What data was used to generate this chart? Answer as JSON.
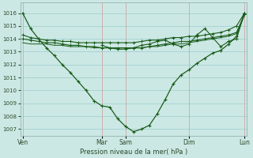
{
  "background_color": "#cce8e4",
  "grid_color": "#99cccc",
  "line_color": "#1a5c1a",
  "xlabel": "Pression niveau de la mer( hPa )",
  "ylim": [
    1006.5,
    1016.8
  ],
  "yticks": [
    1007,
    1008,
    1009,
    1010,
    1011,
    1012,
    1013,
    1014,
    1015,
    1016
  ],
  "xtick_labels": [
    "Ven",
    "Mar",
    "Sam",
    "Dim",
    "Lun"
  ],
  "xtick_positions": [
    0,
    10,
    13,
    21,
    28
  ],
  "vline_positions": [
    0,
    10,
    13,
    21,
    28
  ],
  "total_points": 29,
  "line1_x": [
    0,
    1,
    2,
    3,
    4,
    5,
    6,
    7,
    8,
    9,
    10,
    11,
    12,
    13,
    14,
    15,
    16,
    17,
    18,
    19,
    20,
    21,
    22,
    23,
    24,
    25,
    26,
    27,
    28
  ],
  "line1_y": [
    1016.0,
    1014.8,
    1014.0,
    1013.3,
    1012.7,
    1012.0,
    1011.4,
    1010.7,
    1010.0,
    1009.2,
    1008.8,
    1008.7,
    1007.8,
    1007.2,
    1006.8,
    1007.0,
    1007.3,
    1008.2,
    1009.3,
    1010.5,
    1011.2,
    1011.6,
    1012.1,
    1012.5,
    1012.9,
    1013.1,
    1013.6,
    1014.2,
    1016.0
  ],
  "line2_x": [
    0,
    1,
    2,
    3,
    4,
    5,
    6,
    7,
    8,
    9,
    10,
    11,
    12,
    13,
    14,
    15,
    16,
    17,
    18,
    19,
    20,
    21,
    22,
    23,
    24,
    25,
    26,
    27,
    28
  ],
  "line2_y": [
    1014.3,
    1014.1,
    1014.0,
    1013.9,
    1013.9,
    1013.8,
    1013.8,
    1013.7,
    1013.7,
    1013.7,
    1013.7,
    1013.7,
    1013.7,
    1013.7,
    1013.7,
    1013.8,
    1013.9,
    1013.9,
    1014.0,
    1014.1,
    1014.1,
    1014.2,
    1014.2,
    1014.3,
    1014.4,
    1014.5,
    1014.7,
    1015.0,
    1016.0
  ],
  "line3_x": [
    0,
    1,
    2,
    3,
    4,
    5,
    6,
    7,
    8,
    9,
    10,
    11,
    12,
    13,
    14,
    15,
    16,
    17,
    18,
    19,
    20,
    21,
    22,
    23,
    24,
    25,
    26,
    27,
    28
  ],
  "line3_y": [
    1014.0,
    1013.9,
    1013.8,
    1013.7,
    1013.7,
    1013.6,
    1013.5,
    1013.5,
    1013.4,
    1013.4,
    1013.3,
    1013.3,
    1013.3,
    1013.3,
    1013.3,
    1013.3,
    1013.4,
    1013.5,
    1013.6,
    1013.7,
    1013.8,
    1013.8,
    1013.9,
    1014.0,
    1014.1,
    1014.2,
    1014.3,
    1014.5,
    1015.9
  ],
  "line4_x": [
    0,
    1,
    2,
    3,
    4,
    5,
    6,
    7,
    8,
    9,
    10,
    11,
    12,
    13,
    14,
    15,
    16,
    17,
    18,
    19,
    20,
    21,
    22,
    23,
    24,
    25,
    26,
    27,
    28
  ],
  "line4_y": [
    1013.7,
    1013.6,
    1013.6,
    1013.6,
    1013.5,
    1013.5,
    1013.4,
    1013.4,
    1013.4,
    1013.3,
    1013.3,
    1013.3,
    1013.3,
    1013.3,
    1013.3,
    1013.3,
    1013.4,
    1013.4,
    1013.5,
    1013.6,
    1013.6,
    1013.7,
    1013.8,
    1013.9,
    1014.0,
    1014.1,
    1014.2,
    1014.4,
    1015.8
  ],
  "line5_x": [
    10,
    11,
    12,
    13,
    14,
    15,
    16,
    17,
    18,
    19,
    20,
    21,
    22,
    23,
    24,
    25,
    26,
    27,
    28
  ],
  "line5_y": [
    1013.5,
    1013.3,
    1013.2,
    1013.2,
    1013.3,
    1013.5,
    1013.6,
    1013.8,
    1013.9,
    1013.6,
    1013.4,
    1013.6,
    1014.3,
    1014.8,
    1014.1,
    1013.4,
    1013.8,
    1014.0,
    1016.0
  ]
}
